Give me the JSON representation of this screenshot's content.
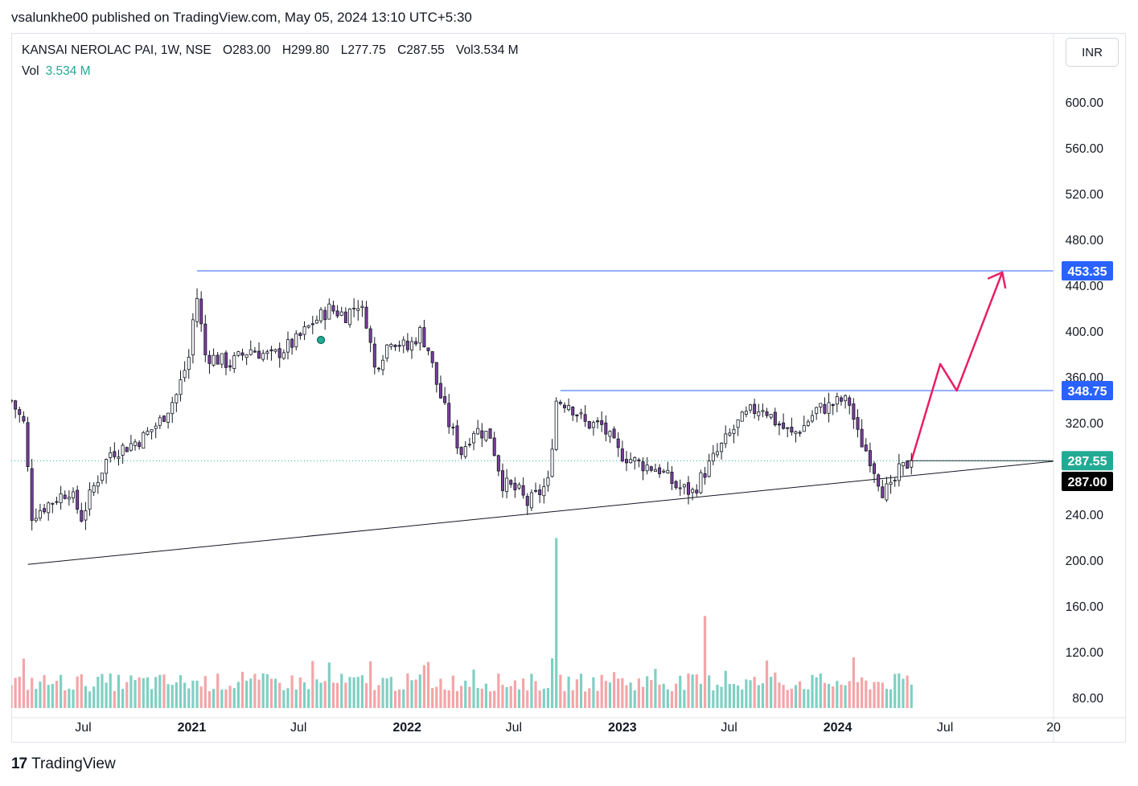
{
  "header": {
    "attribution": "vsalunkhe00 published on TradingView.com, May 05, 2024 13:10 UTC+5:30"
  },
  "legend": {
    "symbol": "KANSAI NEROLAC PAI, 1W, NSE",
    "open": "O283.00",
    "high": "H299.80",
    "low": "L277.75",
    "close": "C287.55",
    "volume": "Vol3.534 M",
    "vol_label": "Vol",
    "vol_value": "3.534 M"
  },
  "currency_button": "INR",
  "brand": {
    "logo": "17",
    "name": "TradingView"
  },
  "colors": {
    "up": "#22ab94",
    "down": "#f23645",
    "up_body": "#ffffff",
    "down_body": "#7b3f9e",
    "vol_up": "#7fd0c3",
    "vol_down": "#f4a5a8",
    "level_line": "#2962ff",
    "projection": "#e91e63",
    "price_tag_up": "#22ab94"
  },
  "chart_data": {
    "type": "candlestick",
    "title": "KANSAI NEROLAC PAI, 1W, NSE",
    "ylim": [
      80,
      640
    ],
    "y_ticks": [
      "600.00",
      "560.00",
      "520.00",
      "480.00",
      "440.00",
      "400.00",
      "360.00",
      "320.00",
      "240.00",
      "200.00",
      "160.00",
      "120.00",
      "80.00"
    ],
    "x_ticks": [
      {
        "label": "Jul",
        "date": "2020-07-01"
      },
      {
        "label": "2021",
        "date": "2021-01-01"
      },
      {
        "label": "Jul",
        "date": "2021-07-01"
      },
      {
        "label": "2022",
        "date": "2022-01-01"
      },
      {
        "label": "Jul",
        "date": "2022-07-01"
      },
      {
        "label": "2023",
        "date": "2023-01-01"
      },
      {
        "label": "Jul",
        "date": "2023-07-01"
      },
      {
        "label": "2024",
        "date": "2024-01-01"
      },
      {
        "label": "Jul",
        "date": "2024-07-01"
      },
      {
        "label": "20",
        "date": "2025-01-01"
      }
    ],
    "x_range": [
      "2020-03-01",
      "2025-01-01"
    ],
    "price_path": [
      [
        "2020-03-01",
        340
      ],
      [
        "2020-03-22",
        320
      ],
      [
        "2020-04-05",
        240
      ],
      [
        "2020-05-03",
        250
      ],
      [
        "2020-06-07",
        262
      ],
      [
        "2020-06-28",
        238
      ],
      [
        "2020-07-19",
        265
      ],
      [
        "2020-08-16",
        295
      ],
      [
        "2020-09-13",
        300
      ],
      [
        "2020-10-11",
        308
      ],
      [
        "2020-11-08",
        322
      ],
      [
        "2020-12-06",
        345
      ],
      [
        "2020-12-27",
        378
      ],
      [
        "2021-01-03",
        410
      ],
      [
        "2021-01-10",
        430
      ],
      [
        "2021-01-24",
        380
      ],
      [
        "2021-03-07",
        372
      ],
      [
        "2021-04-11",
        385
      ],
      [
        "2021-05-16",
        378
      ],
      [
        "2021-06-27",
        392
      ],
      [
        "2021-07-25",
        408
      ],
      [
        "2021-08-22",
        420
      ],
      [
        "2021-09-19",
        415
      ],
      [
        "2021-10-10",
        425
      ],
      [
        "2021-10-24",
        410
      ],
      [
        "2021-11-07",
        368
      ],
      [
        "2021-12-05",
        395
      ],
      [
        "2022-01-02",
        385
      ],
      [
        "2022-01-23",
        400
      ],
      [
        "2022-02-06",
        385
      ],
      [
        "2022-02-20",
        355
      ],
      [
        "2022-03-13",
        320
      ],
      [
        "2022-04-03",
        295
      ],
      [
        "2022-04-24",
        315
      ],
      [
        "2022-05-22",
        310
      ],
      [
        "2022-06-12",
        268
      ],
      [
        "2022-07-10",
        260
      ],
      [
        "2022-07-24",
        250
      ],
      [
        "2022-08-14",
        260
      ],
      [
        "2022-08-28",
        268
      ],
      [
        "2022-09-11",
        340
      ],
      [
        "2022-10-02",
        338
      ],
      [
        "2022-10-30",
        320
      ],
      [
        "2022-11-27",
        318
      ],
      [
        "2022-12-25",
        295
      ],
      [
        "2023-01-29",
        285
      ],
      [
        "2023-03-05",
        280
      ],
      [
        "2023-04-02",
        265
      ],
      [
        "2023-04-30",
        260
      ],
      [
        "2023-05-21",
        278
      ],
      [
        "2023-06-18",
        300
      ],
      [
        "2023-07-16",
        320
      ],
      [
        "2023-08-06",
        330
      ],
      [
        "2023-08-27",
        335
      ],
      [
        "2023-09-17",
        322
      ],
      [
        "2023-10-15",
        310
      ],
      [
        "2023-11-05",
        318
      ],
      [
        "2023-11-26",
        332
      ],
      [
        "2023-12-17",
        335
      ],
      [
        "2024-01-07",
        340
      ],
      [
        "2024-01-21",
        338
      ],
      [
        "2024-02-04",
        310
      ],
      [
        "2024-02-25",
        290
      ],
      [
        "2024-03-17",
        262
      ],
      [
        "2024-03-31",
        262
      ],
      [
        "2024-04-14",
        278
      ],
      [
        "2024-05-05",
        287.55
      ]
    ],
    "volume_spikes": [
      [
        "2022-09-11",
        220
      ],
      [
        "2023-05-21",
        152
      ]
    ],
    "drawings": {
      "resistance_high": {
        "price": 453.35,
        "from": "2021-01-10"
      },
      "neckline": {
        "price": 348.75,
        "from": "2022-09-18"
      },
      "last_close_line": {
        "price": 287.55,
        "from": "2024-04-28"
      },
      "rising_trendline": {
        "from": [
          "2020-03-29",
          197
        ],
        "to": [
          "2024-12-31",
          287
        ]
      },
      "projection_arrow": [
        [
          "2024-05-05",
          287.55
        ],
        [
          "2024-06-23",
          372
        ],
        [
          "2024-07-21",
          348.75
        ],
        [
          "2024-10-06",
          452
        ]
      ]
    },
    "price_tags": [
      {
        "label": "453.35",
        "price": 453.35,
        "color": "#2962ff"
      },
      {
        "label": "348.75",
        "price": 348.75,
        "color": "#2962ff"
      },
      {
        "label": "287.55",
        "price": 287.55,
        "color": "#22ab94"
      },
      {
        "label": "287.00",
        "price": 287.0,
        "color": "#000000"
      }
    ]
  }
}
